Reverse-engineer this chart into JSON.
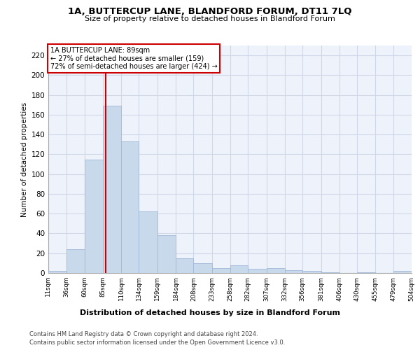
{
  "title1": "1A, BUTTERCUP LANE, BLANDFORD FORUM, DT11 7LQ",
  "title2": "Size of property relative to detached houses in Blandford Forum",
  "xlabel": "Distribution of detached houses by size in Blandford Forum",
  "ylabel": "Number of detached properties",
  "footer1": "Contains HM Land Registry data © Crown copyright and database right 2024.",
  "footer2": "Contains public sector information licensed under the Open Government Licence v3.0.",
  "annotation_line1": "1A BUTTERCUP LANE: 89sqm",
  "annotation_line2": "← 27% of detached houses are smaller (159)",
  "annotation_line3": "72% of semi-detached houses are larger (424) →",
  "property_size": 89,
  "bar_color": "#c9d9ec",
  "bar_edge_color": "#a0b8d8",
  "vline_color": "#cc0000",
  "grid_color": "#d0d8e8",
  "background_color": "#eef2fa",
  "bin_edges": [
    11,
    36,
    60,
    85,
    110,
    134,
    159,
    184,
    208,
    233,
    258,
    282,
    307,
    332,
    356,
    381,
    406,
    430,
    455,
    479,
    504
  ],
  "bin_labels": [
    "11sqm",
    "36sqm",
    "60sqm",
    "85sqm",
    "110sqm",
    "134sqm",
    "159sqm",
    "184sqm",
    "208sqm",
    "233sqm",
    "258sqm",
    "282sqm",
    "307sqm",
    "332sqm",
    "356sqm",
    "381sqm",
    "406sqm",
    "430sqm",
    "455sqm",
    "479sqm",
    "504sqm"
  ],
  "bar_heights": [
    2,
    24,
    115,
    169,
    133,
    62,
    38,
    15,
    10,
    5,
    8,
    4,
    5,
    3,
    2,
    1,
    0,
    1,
    0,
    2
  ],
  "ylim": [
    0,
    230
  ],
  "yticks": [
    0,
    20,
    40,
    60,
    80,
    100,
    120,
    140,
    160,
    180,
    200,
    220
  ]
}
